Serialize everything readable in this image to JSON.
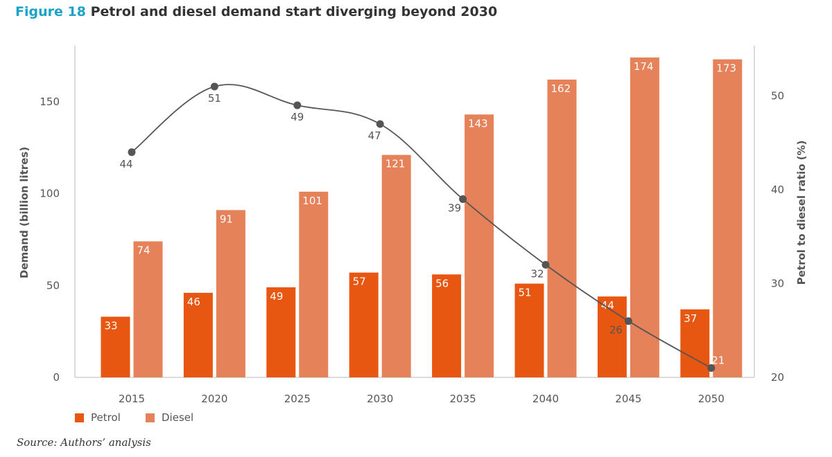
{
  "figure": {
    "number": "Figure 18",
    "title": "Petrol and diesel demand start diverging beyond 2030",
    "source": "Source: Authors’ analysis"
  },
  "chart_data": {
    "type": "bar",
    "categories": [
      "2015",
      "2020",
      "2025",
      "2030",
      "2035",
      "2040",
      "2045",
      "2050"
    ],
    "series": [
      {
        "name": "Petrol",
        "type": "bar",
        "axis": "left",
        "color": "#e85712",
        "values": [
          33,
          46,
          49,
          57,
          56,
          51,
          44,
          37
        ]
      },
      {
        "name": "Diesel",
        "type": "bar",
        "axis": "left",
        "color": "#e5825a",
        "values": [
          74,
          91,
          101,
          121,
          143,
          162,
          174,
          173
        ]
      },
      {
        "name": "",
        "type": "line",
        "axis": "right",
        "color": "#555555",
        "values": [
          44,
          51,
          49,
          47,
          39,
          32,
          26,
          21
        ]
      }
    ],
    "ylabel": "Demand (billion litres)",
    "ylabel_right": "Petrol to diesel ratio (%)",
    "ylim": [
      0,
      180
    ],
    "ylim_right": [
      20,
      55
    ],
    "yticks": [
      0,
      50,
      100,
      150
    ],
    "yticks_right": [
      20,
      30,
      40,
      50
    ],
    "grid": false,
    "legend": "bottom-left"
  }
}
